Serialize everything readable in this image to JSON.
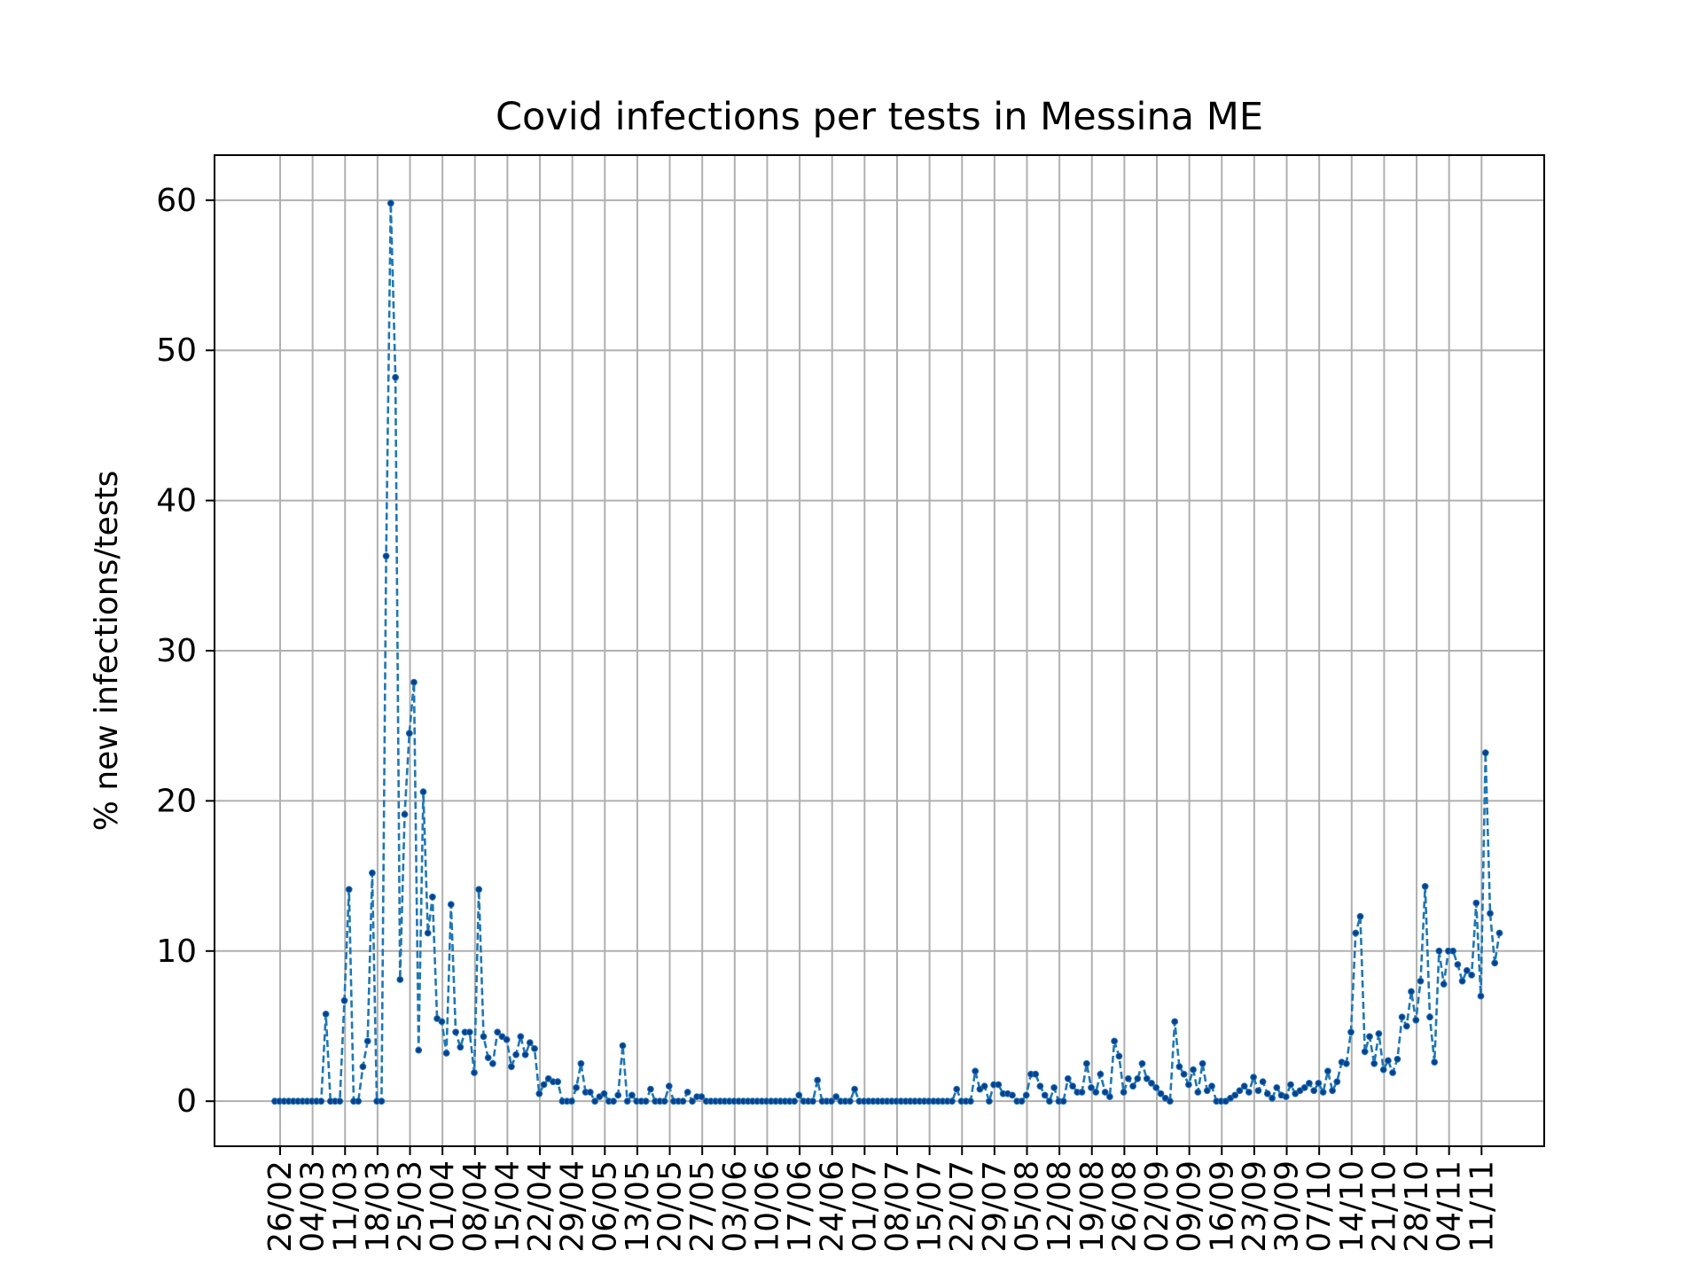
{
  "chart_data": {
    "type": "line",
    "title": "Covid infections per tests in Messina ME",
    "xlabel": "",
    "ylabel": "% new infections/tests",
    "x_tick_labels": [
      "26/02",
      "04/03",
      "11/03",
      "18/03",
      "25/03",
      "01/04",
      "08/04",
      "15/04",
      "22/04",
      "29/04",
      "06/05",
      "13/05",
      "20/05",
      "27/05",
      "03/06",
      "10/06",
      "17/06",
      "24/06",
      "01/07",
      "08/07",
      "15/07",
      "22/07",
      "29/07",
      "05/08",
      "12/08",
      "19/08",
      "26/08",
      "02/09",
      "09/09",
      "16/09",
      "23/09",
      "30/09",
      "07/10",
      "14/10",
      "21/10",
      "28/10",
      "04/11",
      "11/11"
    ],
    "y_ticks": [
      0,
      10,
      20,
      30,
      40,
      50,
      60
    ],
    "ylim": [
      -3,
      63
    ],
    "grid": true,
    "legend": "none",
    "series": [
      {
        "color": "#1f77b4",
        "line_style": "dashed",
        "marker": "dot",
        "values": [
          0,
          0,
          0,
          0,
          0,
          0,
          0,
          0,
          0,
          0,
          0,
          5.8,
          0,
          0,
          0,
          6.7,
          14.1,
          0,
          0,
          2.3,
          4.0,
          15.2,
          0,
          0,
          36.3,
          59.8,
          48.2,
          8.1,
          19.1,
          24.5,
          27.9,
          3.4,
          20.6,
          11.2,
          13.6,
          5.5,
          5.3,
          3.2,
          13.1,
          4.6,
          3.6,
          4.6,
          4.6,
          1.9,
          14.1,
          4.3,
          2.9,
          2.5,
          4.6,
          4.3,
          4.1,
          2.3,
          3.1,
          4.3,
          3.1,
          3.9,
          3.5,
          0.5,
          1.1,
          1.5,
          1.3,
          1.3,
          0,
          0,
          0,
          0.9,
          2.5,
          0.6,
          0.6,
          0,
          0.3,
          0.5,
          0,
          0,
          0.4,
          3.7,
          0,
          0.4,
          0,
          0,
          0,
          0.8,
          0,
          0,
          0,
          1.0,
          0,
          0,
          0,
          0.6,
          0,
          0.3,
          0.3,
          0,
          0,
          0,
          0,
          0,
          0,
          0,
          0,
          0,
          0,
          0,
          0,
          0,
          0,
          0,
          0,
          0,
          0,
          0,
          0,
          0.4,
          0,
          0,
          0,
          1.4,
          0,
          0,
          0,
          0.3,
          0,
          0,
          0,
          0.8,
          0,
          0,
          0,
          0,
          0,
          0,
          0,
          0,
          0,
          0,
          0,
          0,
          0,
          0,
          0,
          0,
          0,
          0,
          0,
          0,
          0,
          0.8,
          0,
          0,
          0,
          2.0,
          0.8,
          1.0,
          0,
          1.1,
          1.1,
          0.5,
          0.5,
          0.4,
          0,
          0,
          0.4,
          1.8,
          1.8,
          1.0,
          0.4,
          0,
          0.9,
          0,
          0,
          1.5,
          1.0,
          0.6,
          0.6,
          2.5,
          0.9,
          0.6,
          1.8,
          0.6,
          0.3,
          4.0,
          3.0,
          0.6,
          1.5,
          1.0,
          1.5,
          2.5,
          1.5,
          1.2,
          0.9,
          0.5,
          0.2,
          0,
          5.3,
          2.3,
          1.8,
          1.1,
          2.1,
          0.6,
          2.5,
          0.7,
          1.0,
          0,
          0,
          0,
          0.2,
          0.4,
          0.7,
          1.0,
          0.6,
          1.6,
          0.7,
          1.3,
          0.5,
          0.2,
          0.9,
          0.4,
          0.3,
          1.1,
          0.5,
          0.7,
          0.9,
          1.2,
          0.7,
          1.2,
          0.6,
          2.0,
          0.7,
          1.3,
          2.6,
          2.5,
          4.6,
          11.2,
          12.3,
          3.3,
          4.3,
          2.5,
          4.5,
          2.1,
          2.7,
          1.9,
          2.8,
          5.6,
          5.0,
          7.3,
          5.4,
          8.0,
          14.3,
          5.6,
          2.6,
          10.0,
          7.8,
          10.0,
          10.0,
          9.1,
          8.0,
          8.7,
          8.4,
          13.2,
          7.0,
          23.2,
          12.5,
          9.2,
          11.2
        ]
      }
    ]
  }
}
